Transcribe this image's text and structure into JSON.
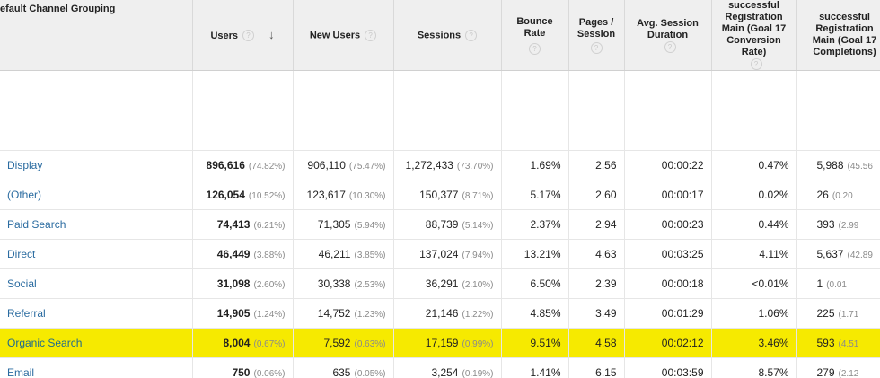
{
  "headers": {
    "dimension": "efault Channel Grouping",
    "users": "Users",
    "new_users": "New Users",
    "sessions": "Sessions",
    "bounce_rate": "Bounce Rate",
    "pages_session": "Pages / Session",
    "avg_duration": "Avg. Session Duration",
    "conv_rate": "successful Registration Main (Goal 17 Conversion Rate)",
    "completions": "successful Registration Main (Goal 17 Completions)"
  },
  "sort_icon": "arrow-down-icon",
  "highlight_color": "#f6ea00",
  "link_color": "#2a6ba0",
  "rows": [
    {
      "channel": "Display",
      "users": "896,616",
      "users_pct": "(74.82%)",
      "new_users": "906,110",
      "new_users_pct": "(75.47%)",
      "sessions": "1,272,433",
      "sessions_pct": "(73.70%)",
      "bounce": "1.69%",
      "pages": "2.56",
      "duration": "00:00:22",
      "conv": "0.47%",
      "comp": "5,988",
      "comp_pct": "(45.56"
    },
    {
      "channel": "(Other)",
      "users": "126,054",
      "users_pct": "(10.52%)",
      "new_users": "123,617",
      "new_users_pct": "(10.30%)",
      "sessions": "150,377",
      "sessions_pct": "(8.71%)",
      "bounce": "5.17%",
      "pages": "2.60",
      "duration": "00:00:17",
      "conv": "0.02%",
      "comp": "26",
      "comp_pct": "(0.20"
    },
    {
      "channel": "Paid Search",
      "users": "74,413",
      "users_pct": "(6.21%)",
      "new_users": "71,305",
      "new_users_pct": "(5.94%)",
      "sessions": "88,739",
      "sessions_pct": "(5.14%)",
      "bounce": "2.37%",
      "pages": "2.94",
      "duration": "00:00:23",
      "conv": "0.44%",
      "comp": "393",
      "comp_pct": "(2.99"
    },
    {
      "channel": "Direct",
      "users": "46,449",
      "users_pct": "(3.88%)",
      "new_users": "46,211",
      "new_users_pct": "(3.85%)",
      "sessions": "137,024",
      "sessions_pct": "(7.94%)",
      "bounce": "13.21%",
      "pages": "4.63",
      "duration": "00:03:25",
      "conv": "4.11%",
      "comp": "5,637",
      "comp_pct": "(42.89"
    },
    {
      "channel": "Social",
      "users": "31,098",
      "users_pct": "(2.60%)",
      "new_users": "30,338",
      "new_users_pct": "(2.53%)",
      "sessions": "36,291",
      "sessions_pct": "(2.10%)",
      "bounce": "6.50%",
      "pages": "2.39",
      "duration": "00:00:18",
      "conv": "<0.01%",
      "comp": "1",
      "comp_pct": "(0.01"
    },
    {
      "channel": "Referral",
      "users": "14,905",
      "users_pct": "(1.24%)",
      "new_users": "14,752",
      "new_users_pct": "(1.23%)",
      "sessions": "21,146",
      "sessions_pct": "(1.22%)",
      "bounce": "4.85%",
      "pages": "3.49",
      "duration": "00:01:29",
      "conv": "1.06%",
      "comp": "225",
      "comp_pct": "(1.71"
    },
    {
      "channel": "Organic Search",
      "users": "8,004",
      "users_pct": "(0.67%)",
      "new_users": "7,592",
      "new_users_pct": "(0.63%)",
      "sessions": "17,159",
      "sessions_pct": "(0.99%)",
      "bounce": "9.51%",
      "pages": "4.58",
      "duration": "00:02:12",
      "conv": "3.46%",
      "comp": "593",
      "comp_pct": "(4.51",
      "highlight": true
    },
    {
      "channel": "Email",
      "users": "750",
      "users_pct": "(0.06%)",
      "new_users": "635",
      "new_users_pct": "(0.05%)",
      "sessions": "3,254",
      "sessions_pct": "(0.19%)",
      "bounce": "1.41%",
      "pages": "6.15",
      "duration": "00:03:59",
      "conv": "8.57%",
      "comp": "279",
      "comp_pct": "(2.12"
    }
  ]
}
